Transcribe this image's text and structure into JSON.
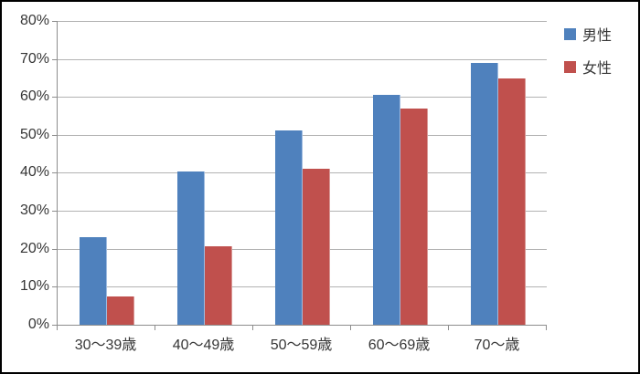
{
  "chart_data": {
    "type": "bar",
    "title": "",
    "categories": [
      "30〜39歳",
      "40〜49歳",
      "50〜59歳",
      "60〜69歳",
      "70〜歳"
    ],
    "series": [
      {
        "name": "男性",
        "color": "#4F81BD",
        "edge_highlight": "#9EBBE0",
        "values": [
          23.1,
          40.3,
          51.2,
          60.5,
          68.9
        ]
      },
      {
        "name": "女性",
        "color": "#C0504D",
        "edge_highlight": "#D89795",
        "values": [
          7.5,
          20.7,
          41.0,
          56.9,
          64.9
        ]
      }
    ],
    "ylim": [
      0,
      80
    ],
    "ytick_step": 10,
    "ytick_labels": [
      "0%",
      "10%",
      "20%",
      "30%",
      "40%",
      "50%",
      "60%",
      "70%",
      "80%"
    ],
    "grid": true,
    "legend_position": "right",
    "colors": {
      "gridline": "#B3B3B3",
      "axis": "#8E8E8E",
      "text": "#363636",
      "background": "#FFFFFF",
      "frame_border": "#000000"
    }
  }
}
